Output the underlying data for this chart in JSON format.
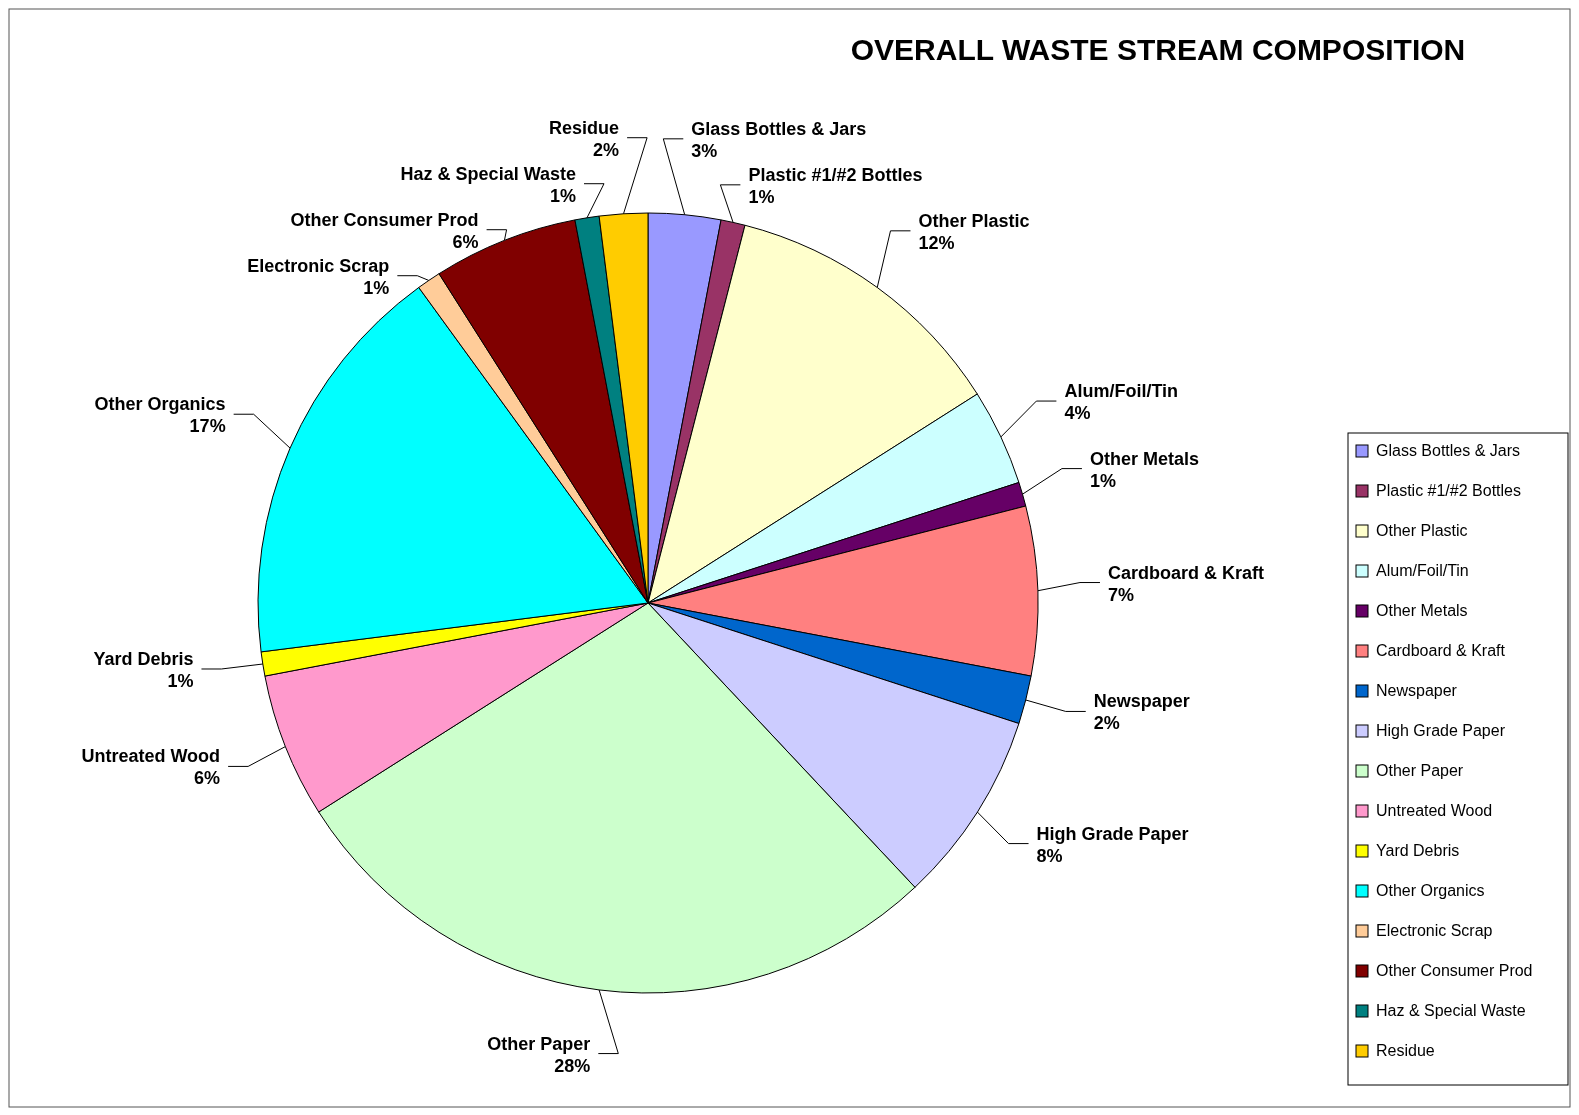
{
  "chart_data": {
    "type": "pie",
    "title": "OVERALL WASTE STREAM COMPOSITION",
    "categories": [
      "Glass Bottles & Jars",
      "Plastic #1/#2 Bottles",
      "Other Plastic",
      "Alum/Foil/Tin",
      "Other Metals",
      "Cardboard & Kraft",
      "Newspaper",
      "High Grade Paper",
      "Other Paper",
      "Untreated Wood",
      "Yard Debris",
      "Other Organics",
      "Electronic Scrap",
      "Other Consumer Prod",
      "Haz & Special Waste",
      "Residue"
    ],
    "values": [
      3,
      1,
      12,
      4,
      1,
      7,
      2,
      8,
      28,
      6,
      1,
      17,
      1,
      6,
      1,
      2
    ],
    "value_labels": [
      "3%",
      "1%",
      "12%",
      "4%",
      "1%",
      "7%",
      "2%",
      "8%",
      "28%",
      "6%",
      "1%",
      "17%",
      "1%",
      "6%",
      "1%",
      "2%"
    ],
    "colors": [
      "#9999ff",
      "#993366",
      "#ffffcc",
      "#ccffff",
      "#660066",
      "#ff8080",
      "#0066cc",
      "#ccccff",
      "#ccffcc",
      "#ff99cc",
      "#ffff00",
      "#00ffff",
      "#ffcc99",
      "#800000",
      "#008080",
      "#ffcc00"
    ],
    "legend": "right"
  }
}
